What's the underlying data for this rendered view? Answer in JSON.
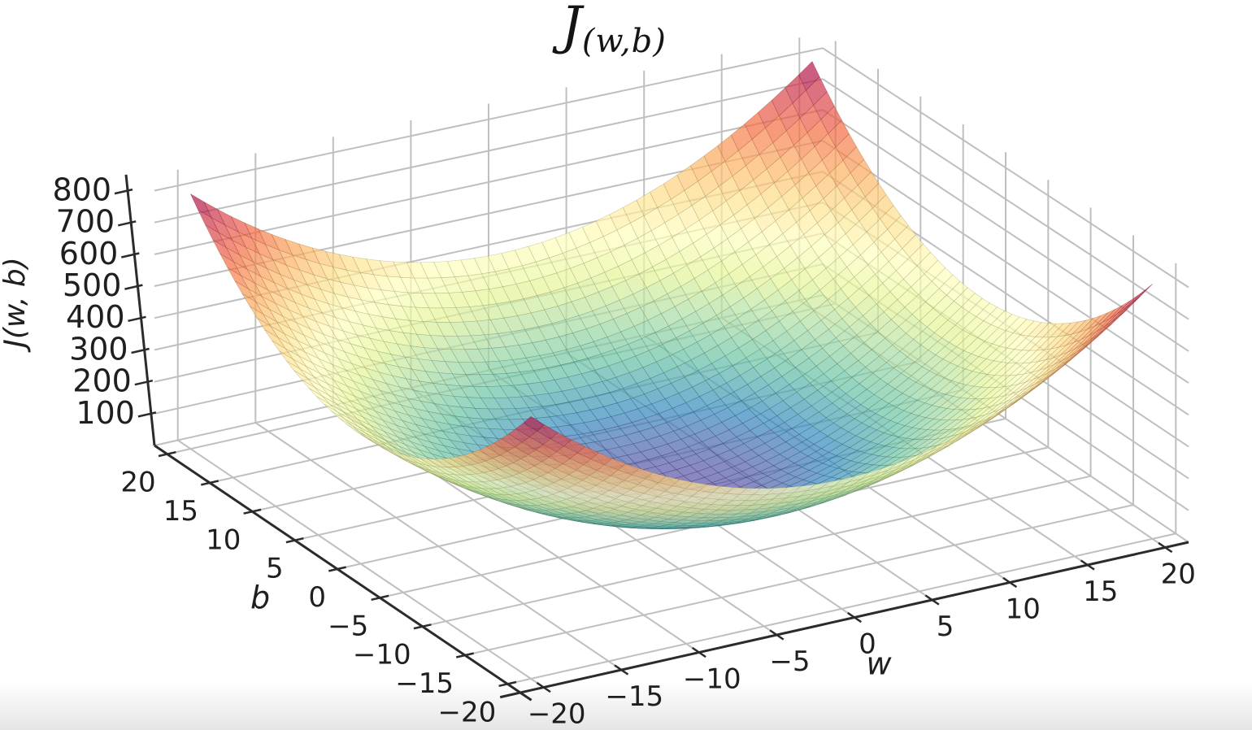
{
  "chart_data": {
    "type": "surface3d",
    "title": {
      "main": "J",
      "subscript": "(w,b)"
    },
    "axes": {
      "x": {
        "label": "w",
        "range": [
          -21.5,
          21.5
        ],
        "tick_values": [
          -20,
          -15,
          -10,
          -5,
          0,
          5,
          10,
          15,
          20
        ],
        "tick_labels": [
          "−20",
          "−15",
          "−10",
          "−5",
          "0",
          "5",
          "10",
          "15",
          "20"
        ]
      },
      "y": {
        "label": "b",
        "range": [
          -21.5,
          21.5
        ],
        "tick_values": [
          20,
          15,
          10,
          5,
          0,
          -5,
          -10,
          -15,
          -20
        ],
        "tick_labels": [
          "20",
          "15",
          "10",
          "5",
          "0",
          "−5",
          "−10",
          "−15",
          "−20"
        ]
      },
      "z": {
        "label": "J(w, b)",
        "range": [
          0,
          850
        ],
        "tick_values": [
          100,
          200,
          300,
          400,
          500,
          600,
          700,
          800
        ],
        "tick_labels": [
          "100",
          "200",
          "300",
          "400",
          "500",
          "600",
          "700",
          "800"
        ]
      }
    },
    "surface": {
      "function": "J(w,b) = w^2 + b^2",
      "w_domain": [
        -20,
        20
      ],
      "b_domain": [
        -20,
        20
      ],
      "z_min": 0,
      "z_max_at_corners": 800,
      "mesh_divisions": 46,
      "opacity": 0.7
    },
    "colormap": {
      "name": "Spectral_r",
      "stops": [
        "#5e4fa2",
        "#3288bd",
        "#66c2a5",
        "#abdda4",
        "#e6f598",
        "#ffffbf",
        "#fee08b",
        "#fdae61",
        "#f46d43",
        "#d53e4f",
        "#9e0142"
      ]
    },
    "grid": true,
    "colors": {
      "grid": "#bfbfbf",
      "axis": "#2b2b2b",
      "text": "#1f1f1f",
      "background": "#ffffff"
    }
  }
}
